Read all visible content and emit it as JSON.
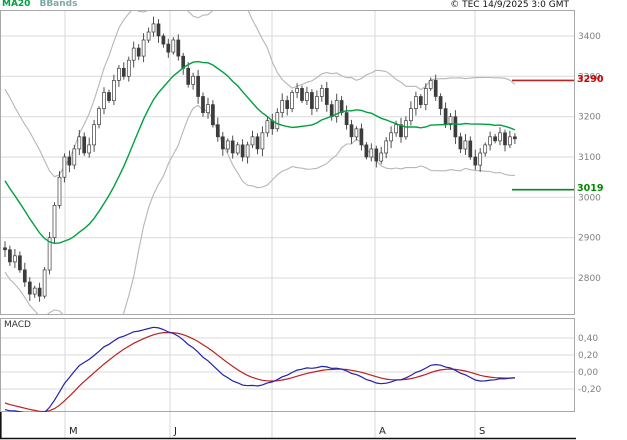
{
  "header": {
    "copyright": "© TEC 14/9/2025 3:0 GMT"
  },
  "legend": {
    "ma20": "MA20",
    "bbands": "BBands"
  },
  "panels": {
    "macd_label": "MACD"
  },
  "colors": {
    "grid": "#d9d9d9",
    "border": "#a8a8a8",
    "candle": "#3c3c3c",
    "ma20": "#00a040",
    "bbands": "#b6b6b6",
    "resistance": "#bb2222",
    "support": "#008822",
    "macd_line": "#2222aa",
    "macd_signal": "#bb2222",
    "axis_text": "#808080",
    "month_text": "#222222"
  },
  "y_axis": {
    "labels": [
      "3400",
      "3300",
      "3200",
      "3100",
      "3000",
      "2900",
      "2800"
    ],
    "values": [
      3400,
      3300,
      3200,
      3100,
      3000,
      2900,
      2800
    ]
  },
  "macd_axis": {
    "labels": [
      "0,40",
      "0,20",
      "0,00",
      "-0,20"
    ],
    "values": [
      0.4,
      0.2,
      0.0,
      -0.2
    ]
  },
  "x_axis": {
    "labels": [
      "M",
      "J",
      "",
      "A",
      "S"
    ]
  },
  "levels": {
    "resistance": {
      "label": "3290",
      "value": 3290
    },
    "support": {
      "label": "3019",
      "value": 3019
    }
  },
  "chart_data": {
    "type": "candlestick",
    "title": "",
    "price_panel": {
      "ylim": [
        2710,
        3465
      ],
      "y_ticks": [
        3400,
        3300,
        3200,
        3100,
        3000,
        2900,
        2800
      ],
      "warmup_closes": [
        3250,
        3230,
        3210,
        3190,
        3170,
        3150,
        3130,
        3110,
        3090,
        3070,
        3050,
        3030,
        3010,
        2990,
        2970,
        2950,
        2930,
        2910,
        2890,
        2875
      ],
      "closes": [
        2870,
        2840,
        2855,
        2820,
        2790,
        2760,
        2775,
        2755,
        2820,
        2900,
        2980,
        3050,
        3100,
        3080,
        3120,
        3150,
        3110,
        3130,
        3180,
        3220,
        3260,
        3240,
        3290,
        3320,
        3300,
        3340,
        3370,
        3350,
        3390,
        3410,
        3430,
        3400,
        3380,
        3360,
        3390,
        3350,
        3320,
        3280,
        3300,
        3250,
        3210,
        3230,
        3180,
        3150,
        3120,
        3140,
        3110,
        3130,
        3100,
        3130,
        3150,
        3120,
        3160,
        3190,
        3170,
        3210,
        3240,
        3220,
        3260,
        3270,
        3240,
        3260,
        3220,
        3250,
        3270,
        3230,
        3200,
        3240,
        3210,
        3180,
        3150,
        3170,
        3130,
        3100,
        3120,
        3090,
        3110,
        3140,
        3160,
        3180,
        3150,
        3190,
        3220,
        3250,
        3230,
        3270,
        3290,
        3250,
        3220,
        3180,
        3200,
        3150,
        3120,
        3140,
        3100,
        3080,
        3110,
        3130,
        3150,
        3140,
        3160,
        3130,
        3150,
        3145
      ],
      "overlays": [
        {
          "name": "MA20",
          "type": "sma",
          "window": 20
        },
        {
          "name": "BBands",
          "type": "bollinger",
          "window": 20,
          "mult": 2
        }
      ],
      "levels": [
        {
          "name": "resistance",
          "value": 3290
        },
        {
          "name": "support",
          "value": 3019
        }
      ]
    },
    "macd_panel": {
      "type": "macd",
      "params": [
        12,
        26,
        9
      ],
      "scale": 0.005,
      "y_ticks": [
        0.4,
        0.2,
        0.0,
        -0.2
      ]
    },
    "x_months": [
      "M",
      "J",
      "",
      "A",
      "S"
    ],
    "legend_position": "top-left",
    "grid": true
  }
}
